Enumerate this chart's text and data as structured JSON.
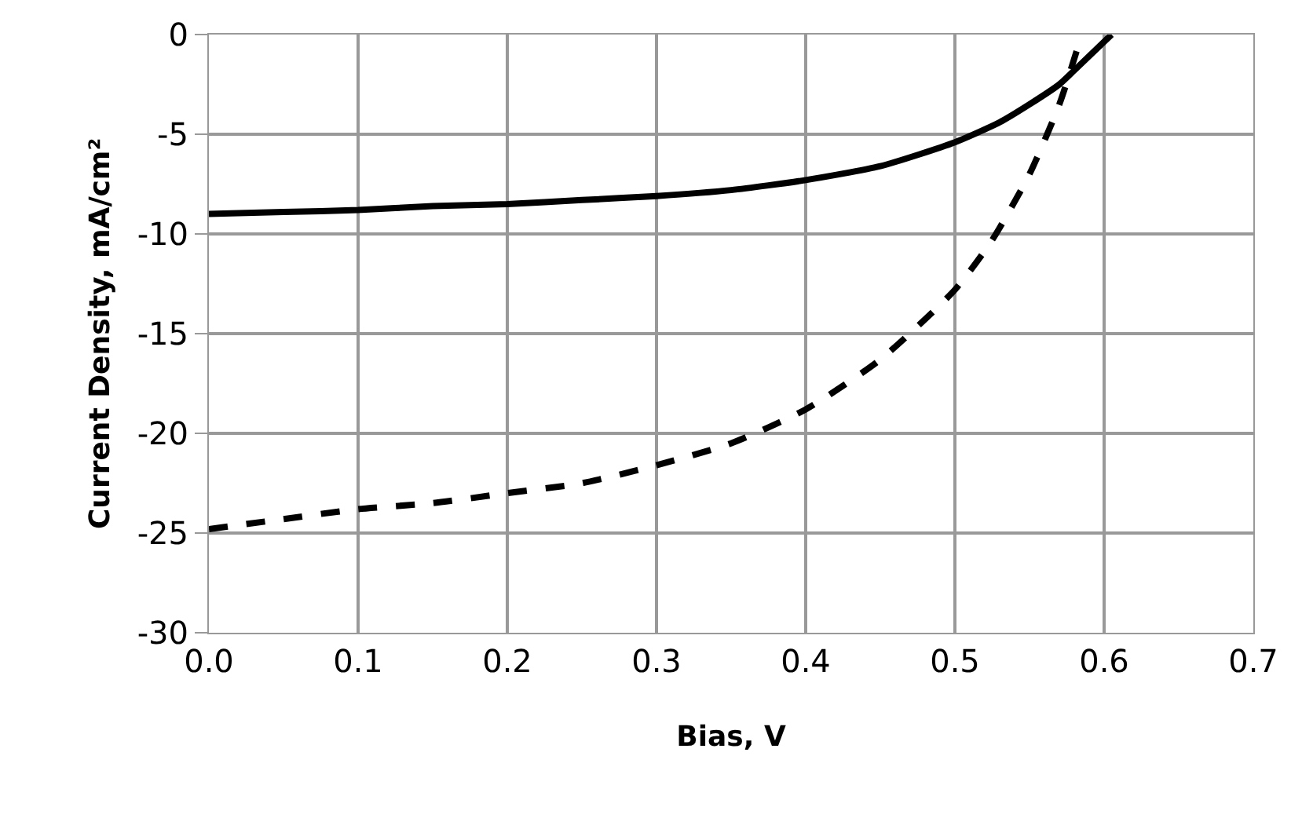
{
  "chart_data": {
    "type": "line",
    "xlabel": "Bias, V",
    "ylabel": "Current Density, mA/cm²",
    "xlim": [
      0,
      0.7
    ],
    "xticks": [
      {
        "value": 0,
        "label": "0.0"
      },
      0.1,
      0.2,
      0.3,
      0.4,
      0.5,
      0.6,
      0.7
    ],
    "ylim": [
      -30,
      0
    ],
    "yticks": [
      -30,
      -25,
      -20,
      -15,
      -10,
      -5,
      0
    ],
    "grid": true,
    "marker": "none",
    "series": [
      {
        "color": "#000000",
        "line_style": "solid",
        "x": [
          0,
          0.05,
          0.1,
          0.15,
          0.2,
          0.25,
          0.3,
          0.35,
          0.4,
          0.45,
          0.5,
          0.53,
          0.55,
          0.57,
          0.58,
          0.605
        ],
        "values": [
          -9.0,
          -8.9,
          -8.8,
          -8.6,
          -8.5,
          -8.3,
          -8.1,
          -7.8,
          -7.3,
          -6.6,
          -5.4,
          -4.4,
          -3.5,
          -2.5,
          -1.8,
          0
        ]
      },
      {
        "color": "#000000",
        "line_style": "dashed",
        "x": [
          0,
          0.05,
          0.1,
          0.15,
          0.2,
          0.25,
          0.3,
          0.35,
          0.4,
          0.45,
          0.5,
          0.525,
          0.55,
          0.57,
          0.585
        ],
        "values": [
          -24.8,
          -24.3,
          -23.8,
          -23.5,
          -23.0,
          -22.5,
          -21.6,
          -20.5,
          -18.8,
          -16.3,
          -12.8,
          -10.3,
          -7.0,
          -3.5,
          0
        ]
      }
    ]
  }
}
